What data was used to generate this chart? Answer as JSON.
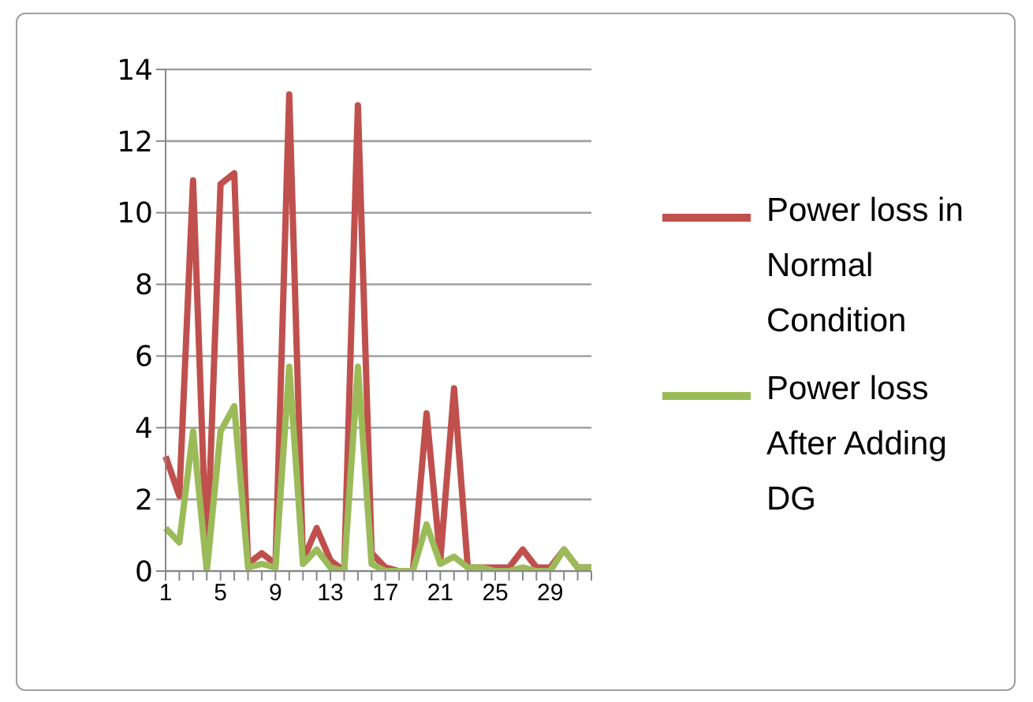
{
  "chart_data": {
    "type": "line",
    "categories": [
      "1",
      null,
      null,
      null,
      "5",
      null,
      null,
      null,
      "9",
      null,
      null,
      null,
      "13",
      null,
      null,
      null,
      "17",
      null,
      null,
      null,
      "21",
      null,
      null,
      null,
      "25",
      null,
      null,
      null,
      "29",
      null,
      null,
      null
    ],
    "series": [
      {
        "name": "Power loss in Normal Condition",
        "color": "#c0504d",
        "values": [
          3.2,
          2.1,
          10.9,
          0.2,
          10.8,
          11.1,
          0.2,
          0.5,
          0.2,
          13.3,
          0.3,
          1.2,
          0.3,
          0,
          13.0,
          0.5,
          0.1,
          0,
          0,
          4.4,
          0.3,
          5.1,
          0.1,
          0.1,
          0.1,
          0.1,
          0.6,
          0.1,
          0.1,
          0.6,
          0.1,
          0.1
        ]
      },
      {
        "name": "Power loss After Adding DG",
        "color": "#9bbb59",
        "values": [
          1.2,
          0.8,
          3.9,
          0,
          3.9,
          4.6,
          0.1,
          0.2,
          0.1,
          5.7,
          0.2,
          0.6,
          0.1,
          0,
          5.7,
          0.2,
          0,
          0,
          0,
          1.3,
          0.2,
          0.4,
          0.1,
          0.1,
          0,
          0,
          0.1,
          0,
          0,
          0.6,
          0.1,
          0.1
        ]
      }
    ],
    "ylim": [
      0,
      14
    ],
    "yticks": [
      0,
      2,
      4,
      6,
      8,
      10,
      12,
      14
    ],
    "grid": "y",
    "legend": "right",
    "marker": "none",
    "line_style": "solid"
  }
}
